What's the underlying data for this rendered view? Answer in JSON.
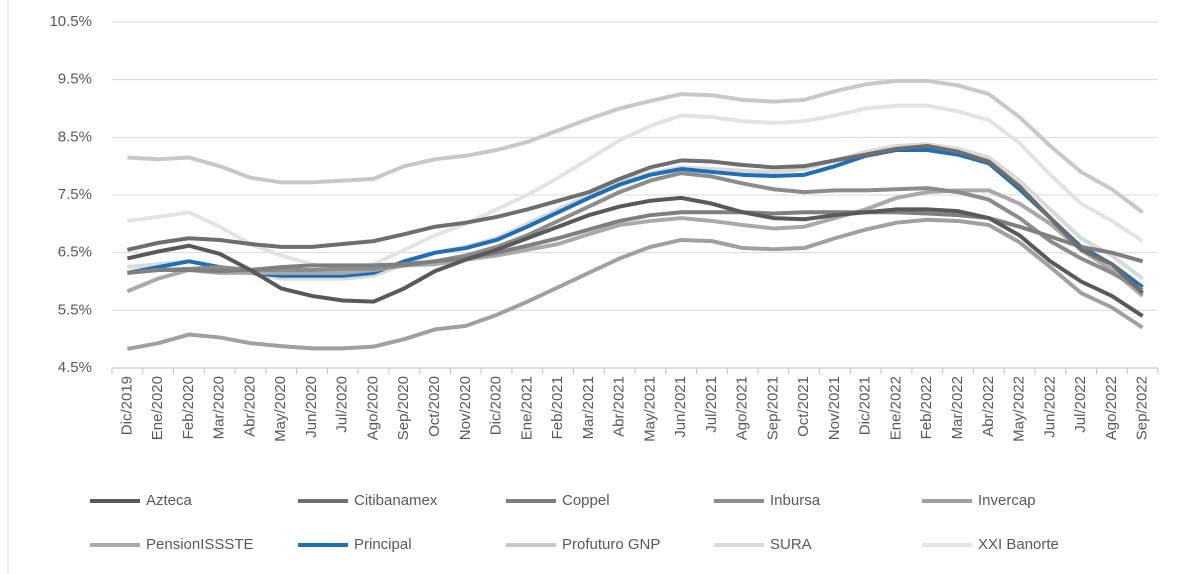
{
  "chart_data": {
    "type": "line",
    "categories": [
      "Dic/2019",
      "Ene/2020",
      "Feb/2020",
      "Mar/2020",
      "Abr/2020",
      "May/2020",
      "Jun/2020",
      "Jul/2020",
      "Ago/2020",
      "Sep/2020",
      "Oct/2020",
      "Nov/2020",
      "Dic/2020",
      "Ene/2021",
      "Feb/2021",
      "Mar/2021",
      "Abr/2021",
      "May/2021",
      "Jun/2021",
      "Jul/2021",
      "Ago/2021",
      "Sep/2021",
      "Oct/2021",
      "Nov/2021",
      "Dic/2021",
      "Ene/2022",
      "Feb/2022",
      "Mar/2022",
      "Abr/2022",
      "May/2022",
      "Jun/2022",
      "Jul/2022",
      "Ago/2022",
      "Sep/2022"
    ],
    "ylim": [
      4.5,
      10.5
    ],
    "yticks": [
      {
        "value": 4.5,
        "label": "4.5%"
      },
      {
        "value": 5.5,
        "label": "5.5%"
      },
      {
        "value": 6.5,
        "label": "6.5%"
      },
      {
        "value": 7.5,
        "label": "7.5%"
      },
      {
        "value": 8.5,
        "label": "8.5%"
      },
      {
        "value": 9.5,
        "label": "9.5%"
      },
      {
        "value": 10.5,
        "label": "10.5%"
      }
    ],
    "grid": true,
    "legend": "bottom",
    "series": [
      {
        "name": "Azteca",
        "color": "#595959",
        "values": [
          6.4,
          6.52,
          6.62,
          6.48,
          6.2,
          5.88,
          5.75,
          5.67,
          5.65,
          5.88,
          6.18,
          6.38,
          6.55,
          6.75,
          6.95,
          7.15,
          7.3,
          7.4,
          7.45,
          7.35,
          7.2,
          7.1,
          7.08,
          7.15,
          7.2,
          7.25,
          7.25,
          7.22,
          7.1,
          6.8,
          6.35,
          6.0,
          5.75,
          5.4
        ]
      },
      {
        "name": "Citibanamex",
        "color": "#6e6e6e",
        "values": [
          6.55,
          6.67,
          6.75,
          6.72,
          6.65,
          6.6,
          6.6,
          6.65,
          6.7,
          6.82,
          6.95,
          7.02,
          7.12,
          7.25,
          7.4,
          7.55,
          7.78,
          7.98,
          8.1,
          8.08,
          8.02,
          7.98,
          8.0,
          8.1,
          8.2,
          8.3,
          8.35,
          8.25,
          8.08,
          7.65,
          7.1,
          6.55,
          6.3,
          5.8
        ]
      },
      {
        "name": "Coppel",
        "color": "#7f7f7f",
        "values": [
          6.15,
          6.2,
          6.2,
          6.18,
          6.2,
          6.25,
          6.28,
          6.28,
          6.28,
          6.3,
          6.35,
          6.4,
          6.5,
          6.62,
          6.75,
          6.9,
          7.05,
          7.15,
          7.2,
          7.2,
          7.2,
          7.18,
          7.2,
          7.2,
          7.2,
          7.2,
          7.18,
          7.15,
          7.1,
          6.95,
          6.78,
          6.6,
          6.5,
          6.35
        ]
      },
      {
        "name": "Inbursa",
        "color": "#8c8c8c",
        "values": [
          6.15,
          6.2,
          6.22,
          6.25,
          6.2,
          6.2,
          6.2,
          6.22,
          6.22,
          6.28,
          6.35,
          6.45,
          6.6,
          6.8,
          7.05,
          7.3,
          7.55,
          7.75,
          7.88,
          7.82,
          7.7,
          7.6,
          7.55,
          7.58,
          7.58,
          7.6,
          7.62,
          7.55,
          7.42,
          7.1,
          6.7,
          6.4,
          6.15,
          5.85
        ]
      },
      {
        "name": "Invercap",
        "color": "#a0a0a0",
        "values": [
          4.83,
          4.93,
          5.08,
          5.03,
          4.93,
          4.88,
          4.84,
          4.84,
          4.87,
          5.0,
          5.17,
          5.23,
          5.42,
          5.65,
          5.9,
          6.15,
          6.4,
          6.6,
          6.72,
          6.7,
          6.58,
          6.56,
          6.58,
          6.75,
          6.9,
          7.02,
          7.07,
          7.05,
          6.98,
          6.68,
          6.25,
          5.8,
          5.55,
          5.2
        ]
      },
      {
        "name": "PensionISSSTE",
        "color": "#a9a9a9",
        "values": [
          5.83,
          6.05,
          6.2,
          6.15,
          6.15,
          6.15,
          6.15,
          6.15,
          6.2,
          6.28,
          6.3,
          6.38,
          6.45,
          6.55,
          6.65,
          6.82,
          6.98,
          7.05,
          7.1,
          7.05,
          6.98,
          6.92,
          6.95,
          7.1,
          7.25,
          7.45,
          7.55,
          7.58,
          7.58,
          7.35,
          7.0,
          6.55,
          6.2,
          5.75
        ]
      },
      {
        "name": "Principal",
        "color": "#1f6fb4",
        "values": [
          6.15,
          6.25,
          6.35,
          6.25,
          6.15,
          6.1,
          6.1,
          6.1,
          6.15,
          6.35,
          6.5,
          6.58,
          6.72,
          6.95,
          7.2,
          7.45,
          7.68,
          7.85,
          7.95,
          7.9,
          7.85,
          7.83,
          7.85,
          8.0,
          8.18,
          8.28,
          8.28,
          8.2,
          8.05,
          7.6,
          7.1,
          6.6,
          6.3,
          5.9
        ]
      },
      {
        "name": "Profuturo GNP",
        "color": "#c8c8c8",
        "values": [
          8.15,
          8.12,
          8.15,
          8.0,
          7.8,
          7.72,
          7.72,
          7.75,
          7.78,
          8.0,
          8.12,
          8.18,
          8.28,
          8.42,
          8.62,
          8.82,
          9.0,
          9.13,
          9.25,
          9.23,
          9.15,
          9.12,
          9.15,
          9.3,
          9.42,
          9.48,
          9.48,
          9.4,
          9.25,
          8.85,
          8.35,
          7.9,
          7.6,
          7.2
        ]
      },
      {
        "name": "SURA",
        "color": "#d9d9d9",
        "values": [
          6.25,
          6.3,
          6.35,
          6.25,
          6.15,
          6.05,
          6.05,
          6.05,
          6.1,
          6.3,
          6.5,
          6.6,
          6.75,
          7.0,
          7.25,
          7.5,
          7.72,
          7.88,
          7.98,
          7.95,
          7.92,
          7.9,
          7.95,
          8.1,
          8.25,
          8.35,
          8.38,
          8.3,
          8.15,
          7.75,
          7.25,
          6.75,
          6.45,
          6.05
        ]
      },
      {
        "name": "XXI Banorte",
        "color": "#e3e3e3",
        "values": [
          7.05,
          7.12,
          7.2,
          6.95,
          6.65,
          6.45,
          6.3,
          6.2,
          6.3,
          6.55,
          6.8,
          7.0,
          7.25,
          7.5,
          7.8,
          8.12,
          8.45,
          8.7,
          8.88,
          8.85,
          8.78,
          8.75,
          8.78,
          8.88,
          9.0,
          9.05,
          9.05,
          8.95,
          8.8,
          8.4,
          7.85,
          7.35,
          7.05,
          6.7
        ]
      }
    ]
  }
}
